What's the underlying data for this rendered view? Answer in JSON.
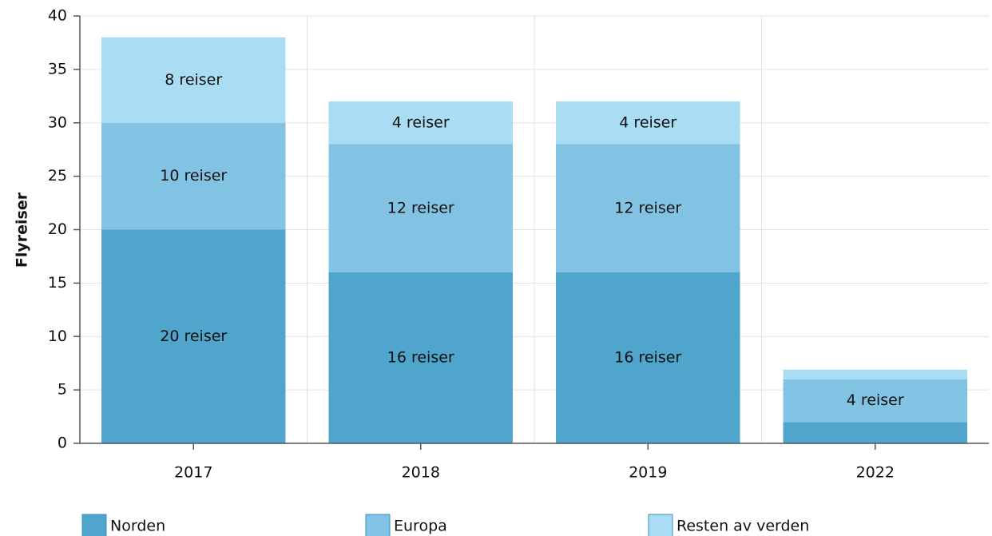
{
  "chart_data": {
    "type": "stacked_bar",
    "ylabel": "Flyreiser",
    "categories": [
      "2017",
      "2018",
      "2019",
      "2022"
    ],
    "series": [
      {
        "name": "Norden",
        "color": "#4fa5cc",
        "values": [
          20,
          16,
          16,
          2
        ],
        "value_labels": [
          "20 reiser",
          "16 reiser",
          "16 reiser",
          null
        ]
      },
      {
        "name": "Europa",
        "color": "#82c3e3",
        "values": [
          10,
          12,
          12,
          4
        ],
        "value_labels": [
          "10 reiser",
          "12 reiser",
          "12 reiser",
          "4 reiser"
        ]
      },
      {
        "name": "Resten av verden",
        "color": "#aadcf3",
        "values": [
          8,
          4,
          4,
          0.9
        ],
        "value_labels": [
          "8 reiser",
          "4 reiser",
          "4 reiser",
          null
        ]
      }
    ],
    "ylim": [
      0,
      40
    ],
    "yticks": [
      0,
      5,
      10,
      15,
      20,
      25,
      30,
      35,
      40
    ],
    "grid": true,
    "legend": "bottom"
  }
}
